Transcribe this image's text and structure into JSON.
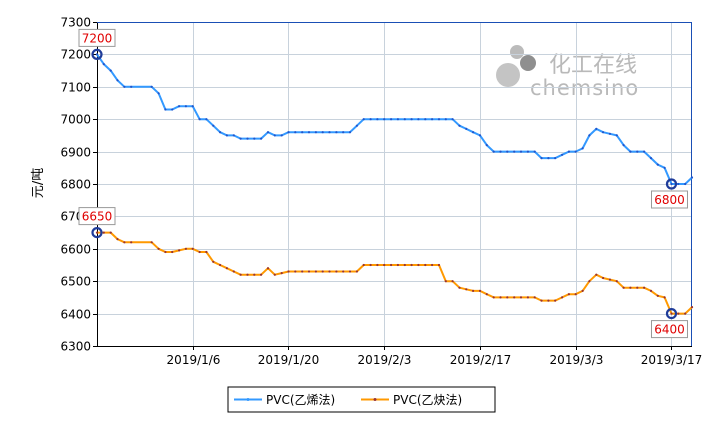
{
  "chart_data": {
    "type": "line",
    "ylabel": "元/吨",
    "ylim": [
      6300,
      7300
    ],
    "yticks": [
      6300,
      6400,
      6500,
      6600,
      6700,
      6800,
      6900,
      7000,
      7100,
      7200,
      7300
    ],
    "x_start": "2018-12-23",
    "x_end": "2019-03-20",
    "xticks": [
      {
        "date": "2019-01-06",
        "label": "2019/1/6"
      },
      {
        "date": "2019-01-20",
        "label": "2019/1/20"
      },
      {
        "date": "2019-02-03",
        "label": "2019/2/3"
      },
      {
        "date": "2019-02-17",
        "label": "2019/2/17"
      },
      {
        "date": "2019-03-03",
        "label": "2019/3/3"
      },
      {
        "date": "2019-03-17",
        "label": "2019/3/17"
      }
    ],
    "grid": true,
    "legend_position": "bottom",
    "watermark": {
      "cn": "化工在线",
      "en": "chemsino"
    },
    "series": [
      {
        "name": "PVC(乙烯法)",
        "color": "#3399ff",
        "points": [
          [
            "2018-12-23",
            7200
          ],
          [
            "2018-12-24",
            7170
          ],
          [
            "2018-12-25",
            7150
          ],
          [
            "2018-12-26",
            7120
          ],
          [
            "2018-12-27",
            7100
          ],
          [
            "2018-12-28",
            7100
          ],
          [
            "2018-12-31",
            7100
          ],
          [
            "2019-01-01",
            7080
          ],
          [
            "2019-01-02",
            7030
          ],
          [
            "2019-01-03",
            7030
          ],
          [
            "2019-01-04",
            7040
          ],
          [
            "2019-01-05",
            7040
          ],
          [
            "2019-01-06",
            7040
          ],
          [
            "2019-01-07",
            7000
          ],
          [
            "2019-01-08",
            7000
          ],
          [
            "2019-01-09",
            6980
          ],
          [
            "2019-01-10",
            6960
          ],
          [
            "2019-01-11",
            6950
          ],
          [
            "2019-01-12",
            6950
          ],
          [
            "2019-01-13",
            6940
          ],
          [
            "2019-01-14",
            6940
          ],
          [
            "2019-01-15",
            6940
          ],
          [
            "2019-01-16",
            6940
          ],
          [
            "2019-01-17",
            6960
          ],
          [
            "2019-01-18",
            6950
          ],
          [
            "2019-01-19",
            6950
          ],
          [
            "2019-01-20",
            6960
          ],
          [
            "2019-01-21",
            6960
          ],
          [
            "2019-01-22",
            6960
          ],
          [
            "2019-01-23",
            6960
          ],
          [
            "2019-01-24",
            6960
          ],
          [
            "2019-01-25",
            6960
          ],
          [
            "2019-01-26",
            6960
          ],
          [
            "2019-01-27",
            6960
          ],
          [
            "2019-01-28",
            6960
          ],
          [
            "2019-01-29",
            6960
          ],
          [
            "2019-01-30",
            6980
          ],
          [
            "2019-01-31",
            7000
          ],
          [
            "2019-02-01",
            7000
          ],
          [
            "2019-02-02",
            7000
          ],
          [
            "2019-02-03",
            7000
          ],
          [
            "2019-02-04",
            7000
          ],
          [
            "2019-02-05",
            7000
          ],
          [
            "2019-02-06",
            7000
          ],
          [
            "2019-02-07",
            7000
          ],
          [
            "2019-02-08",
            7000
          ],
          [
            "2019-02-09",
            7000
          ],
          [
            "2019-02-10",
            7000
          ],
          [
            "2019-02-11",
            7000
          ],
          [
            "2019-02-12",
            7000
          ],
          [
            "2019-02-13",
            7000
          ],
          [
            "2019-02-14",
            6980
          ],
          [
            "2019-02-15",
            6970
          ],
          [
            "2019-02-16",
            6960
          ],
          [
            "2019-02-17",
            6950
          ],
          [
            "2019-02-18",
            6920
          ],
          [
            "2019-02-19",
            6900
          ],
          [
            "2019-02-20",
            6900
          ],
          [
            "2019-02-21",
            6900
          ],
          [
            "2019-02-22",
            6900
          ],
          [
            "2019-02-23",
            6900
          ],
          [
            "2019-02-24",
            6900
          ],
          [
            "2019-02-25",
            6900
          ],
          [
            "2019-02-26",
            6880
          ],
          [
            "2019-02-27",
            6880
          ],
          [
            "2019-02-28",
            6880
          ],
          [
            "2019-03-01",
            6890
          ],
          [
            "2019-03-02",
            6900
          ],
          [
            "2019-03-03",
            6900
          ],
          [
            "2019-03-04",
            6910
          ],
          [
            "2019-03-05",
            6950
          ],
          [
            "2019-03-06",
            6970
          ],
          [
            "2019-03-07",
            6960
          ],
          [
            "2019-03-08",
            6955
          ],
          [
            "2019-03-09",
            6950
          ],
          [
            "2019-03-10",
            6920
          ],
          [
            "2019-03-11",
            6900
          ],
          [
            "2019-03-12",
            6900
          ],
          [
            "2019-03-13",
            6900
          ],
          [
            "2019-03-14",
            6880
          ],
          [
            "2019-03-15",
            6860
          ],
          [
            "2019-03-16",
            6850
          ],
          [
            "2019-03-17",
            6800
          ],
          [
            "2019-03-18",
            6800
          ],
          [
            "2019-03-19",
            6800
          ],
          [
            "2019-03-20",
            6820
          ]
        ]
      },
      {
        "name": "PVC(乙炔法)",
        "color": "#ff9900",
        "points": [
          [
            "2018-12-23",
            6650
          ],
          [
            "2018-12-24",
            6650
          ],
          [
            "2018-12-25",
            6650
          ],
          [
            "2018-12-26",
            6630
          ],
          [
            "2018-12-27",
            6620
          ],
          [
            "2018-12-28",
            6620
          ],
          [
            "2018-12-31",
            6620
          ],
          [
            "2019-01-01",
            6600
          ],
          [
            "2019-01-02",
            6590
          ],
          [
            "2019-01-03",
            6590
          ],
          [
            "2019-01-04",
            6595
          ],
          [
            "2019-01-05",
            6600
          ],
          [
            "2019-01-06",
            6600
          ],
          [
            "2019-01-07",
            6590
          ],
          [
            "2019-01-08",
            6590
          ],
          [
            "2019-01-09",
            6560
          ],
          [
            "2019-01-10",
            6550
          ],
          [
            "2019-01-11",
            6540
          ],
          [
            "2019-01-12",
            6530
          ],
          [
            "2019-01-13",
            6520
          ],
          [
            "2019-01-14",
            6520
          ],
          [
            "2019-01-15",
            6520
          ],
          [
            "2019-01-16",
            6520
          ],
          [
            "2019-01-17",
            6540
          ],
          [
            "2019-01-18",
            6520
          ],
          [
            "2019-01-19",
            6525
          ],
          [
            "2019-01-20",
            6530
          ],
          [
            "2019-01-21",
            6530
          ],
          [
            "2019-01-22",
            6530
          ],
          [
            "2019-01-23",
            6530
          ],
          [
            "2019-01-24",
            6530
          ],
          [
            "2019-01-25",
            6530
          ],
          [
            "2019-01-26",
            6530
          ],
          [
            "2019-01-27",
            6530
          ],
          [
            "2019-01-28",
            6530
          ],
          [
            "2019-01-29",
            6530
          ],
          [
            "2019-01-30",
            6530
          ],
          [
            "2019-01-31",
            6550
          ],
          [
            "2019-02-01",
            6550
          ],
          [
            "2019-02-02",
            6550
          ],
          [
            "2019-02-03",
            6550
          ],
          [
            "2019-02-04",
            6550
          ],
          [
            "2019-02-05",
            6550
          ],
          [
            "2019-02-06",
            6550
          ],
          [
            "2019-02-07",
            6550
          ],
          [
            "2019-02-08",
            6550
          ],
          [
            "2019-02-09",
            6550
          ],
          [
            "2019-02-10",
            6550
          ],
          [
            "2019-02-11",
            6550
          ],
          [
            "2019-02-12",
            6500
          ],
          [
            "2019-02-13",
            6500
          ],
          [
            "2019-02-14",
            6480
          ],
          [
            "2019-02-15",
            6475
          ],
          [
            "2019-02-16",
            6470
          ],
          [
            "2019-02-17",
            6470
          ],
          [
            "2019-02-18",
            6460
          ],
          [
            "2019-02-19",
            6450
          ],
          [
            "2019-02-20",
            6450
          ],
          [
            "2019-02-21",
            6450
          ],
          [
            "2019-02-22",
            6450
          ],
          [
            "2019-02-23",
            6450
          ],
          [
            "2019-02-24",
            6450
          ],
          [
            "2019-02-25",
            6450
          ],
          [
            "2019-02-26",
            6440
          ],
          [
            "2019-02-27",
            6440
          ],
          [
            "2019-02-28",
            6440
          ],
          [
            "2019-03-01",
            6450
          ],
          [
            "2019-03-02",
            6460
          ],
          [
            "2019-03-03",
            6460
          ],
          [
            "2019-03-04",
            6470
          ],
          [
            "2019-03-05",
            6500
          ],
          [
            "2019-03-06",
            6520
          ],
          [
            "2019-03-07",
            6510
          ],
          [
            "2019-03-08",
            6505
          ],
          [
            "2019-03-09",
            6500
          ],
          [
            "2019-03-10",
            6480
          ],
          [
            "2019-03-11",
            6480
          ],
          [
            "2019-03-12",
            6480
          ],
          [
            "2019-03-13",
            6480
          ],
          [
            "2019-03-14",
            6470
          ],
          [
            "2019-03-15",
            6455
          ],
          [
            "2019-03-16",
            6450
          ],
          [
            "2019-03-17",
            6400
          ],
          [
            "2019-03-18",
            6400
          ],
          [
            "2019-03-19",
            6400
          ],
          [
            "2019-03-20",
            6420
          ]
        ]
      }
    ],
    "annotations": [
      {
        "series": 0,
        "date": "2018-12-23",
        "value": 7200,
        "label": "7200",
        "side": "above"
      },
      {
        "series": 0,
        "date": "2019-03-17",
        "value": 6800,
        "label": "6800",
        "side": "below"
      },
      {
        "series": 1,
        "date": "2018-12-23",
        "value": 6650,
        "label": "6650",
        "side": "above"
      },
      {
        "series": 1,
        "date": "2019-03-17",
        "value": 6400,
        "label": "6400",
        "side": "below"
      }
    ]
  }
}
